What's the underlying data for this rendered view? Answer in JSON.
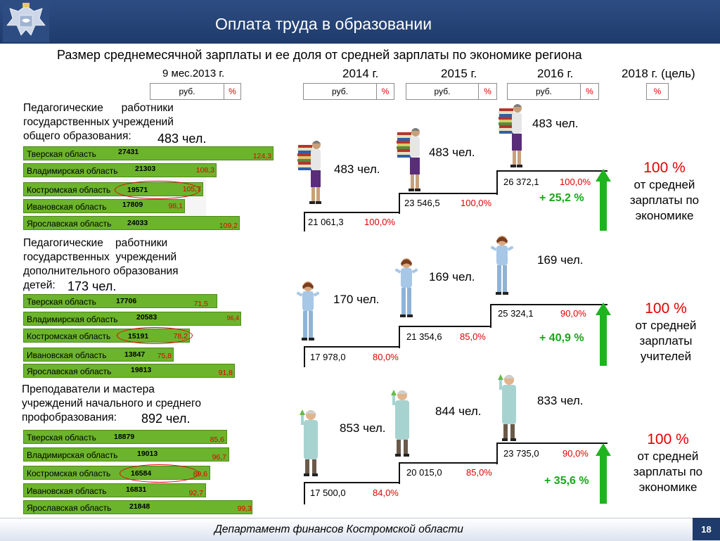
{
  "header": {
    "title": "Оплата труда в образовании"
  },
  "subtitle": "Размер среднемесячной зарплаты и ее доля от средней зарплаты по экономике региона",
  "years": {
    "y2013": "9 мес.2013 г.",
    "y2014": "2014 г.",
    "y2015": "2015 г.",
    "y2016": "2016 г.",
    "y2018": "2018 г. (цель)"
  },
  "units": {
    "rub": "руб.",
    "pct": "%"
  },
  "sections": [
    {
      "category": "Педагогические      работники\nгосударственных учреждений\nобщего образования:",
      "count": "483 чел.",
      "regions": [
        {
          "name": "Тверская область",
          "salary": "27431",
          "percent": "124,3"
        },
        {
          "name": "Владимирская область",
          "salary": "21303",
          "percent": "108,3"
        },
        {
          "name": "Костромская область",
          "salary": "19571",
          "percent": "105,7"
        },
        {
          "name": "Ивановская область",
          "salary": "17809",
          "percent": "98,1"
        },
        {
          "name": "Ярославская область",
          "salary": "24033",
          "percent": "109,2"
        }
      ],
      "steps": [
        {
          "count": "483 чел.",
          "value": "21 061,3",
          "percent": "100,0%"
        },
        {
          "count": "483 чел.",
          "value": "23 546,5",
          "percent": "100,0%"
        },
        {
          "count": "483 чел.",
          "value": "26 372,1",
          "percent": "100,0%"
        }
      ],
      "growth": "+ 25,2 %",
      "target": {
        "big": "100 %",
        "text": "от средней зарплаты по экономике"
      }
    },
    {
      "category": "Педагогические    работники\nгосударственных  учреждений\nдополнительного образования\nдетей:",
      "count": "173 чел.",
      "regions": [
        {
          "name": "Тверская область",
          "salary": "17706",
          "percent": "71,5"
        },
        {
          "name": "Владимирская область",
          "salary": "20583",
          "percent": "96,4"
        },
        {
          "name": "Костромская область",
          "salary": "15191",
          "percent": "78,2"
        },
        {
          "name": "Ивановская область",
          "salary": "13847",
          "percent": "75,8"
        },
        {
          "name": "Ярославская область",
          "salary": "19813",
          "percent": "91,8"
        }
      ],
      "steps": [
        {
          "count": "170 чел.",
          "value": "17 978,0",
          "percent": "80,0%"
        },
        {
          "count": "169 чел.",
          "value": "21 354,6",
          "percent": "85,0%"
        },
        {
          "count": "169 чел.",
          "value": "25 324,1",
          "percent": "90,0%"
        }
      ],
      "growth": "+ 40,9 %",
      "target": {
        "big": "100 %",
        "text": "от средней зарплаты учителей"
      }
    },
    {
      "category": "Преподаватели и мастера\nучреждений начального и среднего\nпрофобразования:",
      "count": "892 чел.",
      "regions": [
        {
          "name": "Тверская область",
          "salary": "18879",
          "percent": "85,6"
        },
        {
          "name": "Владимирская область",
          "salary": "19013",
          "percent": "96,7"
        },
        {
          "name": "Костромская область",
          "salary": "16584",
          "percent": "89,6"
        },
        {
          "name": "Ивановская область",
          "salary": "16831",
          "percent": "92,7"
        },
        {
          "name": "Ярославская область",
          "salary": "21848",
          "percent": "99,3"
        }
      ],
      "steps": [
        {
          "count": "853 чел.",
          "value": "17 500,0",
          "percent": "84,0%"
        },
        {
          "count": "844 чел.",
          "value": "20 015,0",
          "percent": "85,0%"
        },
        {
          "count": "833 чел.",
          "value": "23 735,0",
          "percent": "90,0%"
        }
      ],
      "growth": "+ 35,6 %",
      "target": {
        "big": "100 %",
        "text": "от средней зарплаты по экономике"
      }
    }
  ],
  "footer": {
    "text": "Департамент финансов  Костромской области",
    "page": "18"
  },
  "colors": {
    "header": "#1f3b6c",
    "bar": "#6cb42c",
    "accent_red": "#e00000",
    "growth_green": "#17a817"
  }
}
